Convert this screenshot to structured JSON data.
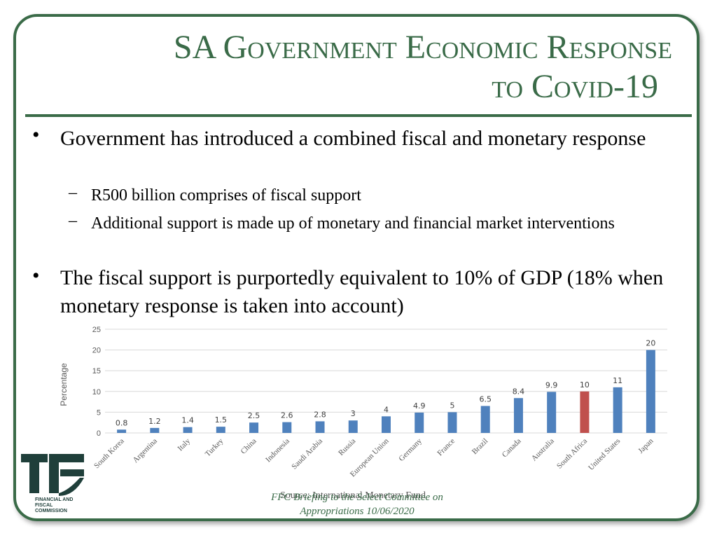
{
  "title": {
    "line1": "SA Government Economic Response",
    "line2": "to Covid-19"
  },
  "bullets": {
    "b1": "Government has introduced a combined fiscal and monetary response",
    "sub1": "R500 billion comprises of fiscal support",
    "sub2": "Additional support is made up of monetary and financial market interventions",
    "b2": "The fiscal support is purportedly equivalent to 10% of GDP (18% when monetary response is taken into account)"
  },
  "footer": {
    "line1": "FFC Briefing to the Select Committee on",
    "line2": "Appropriations 10/06/2020",
    "source": "Source: International Monetary Fund"
  },
  "logo": {
    "text": "FINANCIAL AND FISCAL COMMISSION"
  },
  "colors": {
    "accent": "#3a6b48",
    "bar": "#4f81bd",
    "highlight": "#c0504d"
  },
  "chart_data": {
    "type": "bar",
    "ylabel": "Percentage",
    "ylim": [
      0,
      25
    ],
    "yticks": [
      0,
      5,
      10,
      15,
      20,
      25
    ],
    "grid": true,
    "categories": [
      "South Korea",
      "Argentina",
      "Italy",
      "Turkey",
      "China",
      "Indonesia",
      "Saudi Arabia",
      "Russia",
      "European Union",
      "Germany",
      "France",
      "Brazil",
      "Canada",
      "Australia",
      "South Africa",
      "United States",
      "Japan"
    ],
    "values": [
      0.8,
      1.2,
      1.4,
      1.5,
      2.5,
      2.6,
      2.8,
      3,
      4,
      4.9,
      5,
      6.5,
      8.4,
      9.9,
      10,
      11,
      20
    ],
    "highlight": "South Africa"
  }
}
